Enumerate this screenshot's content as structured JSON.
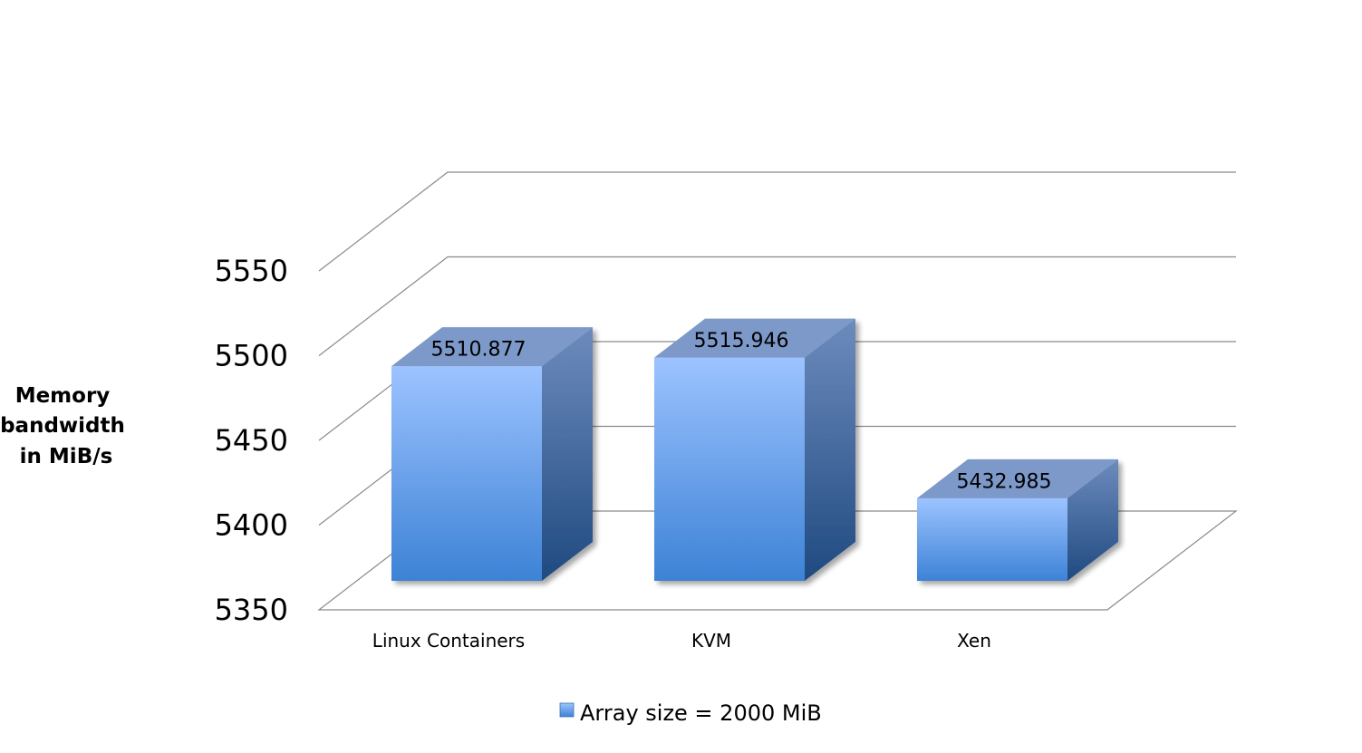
{
  "chart_data": {
    "type": "bar",
    "style": "3d-column",
    "categories": [
      "Linux Containers",
      "KVM",
      "Xen"
    ],
    "series": [
      {
        "name": "Array size = 2000 MiB",
        "values": [
          5510.877,
          5515.946,
          5432.985
        ],
        "value_labels": [
          "5510.877",
          "5515.946",
          "5432.985"
        ]
      }
    ],
    "ylabel": "Memory bandwidth in MiB/s",
    "ylabel_lines": [
      "Memory",
      "bandwidth",
      "in MiB/s"
    ],
    "ylim": [
      5350,
      5550
    ],
    "yticks": [
      5350,
      5400,
      5450,
      5500,
      5550
    ],
    "ytick_labels": [
      "5350",
      "5400",
      "5450",
      "5500",
      "5550"
    ],
    "grid": true,
    "legend_position": "bottom",
    "colors": {
      "bar_front_top": "#9cc3ff",
      "bar_front_bottom": "#3d82d6",
      "bar_side_top": "#6d8bbd",
      "bar_side_bottom": "#1f4a80",
      "bar_top": "#7c99c9",
      "grid": "#8a8a8a"
    }
  }
}
